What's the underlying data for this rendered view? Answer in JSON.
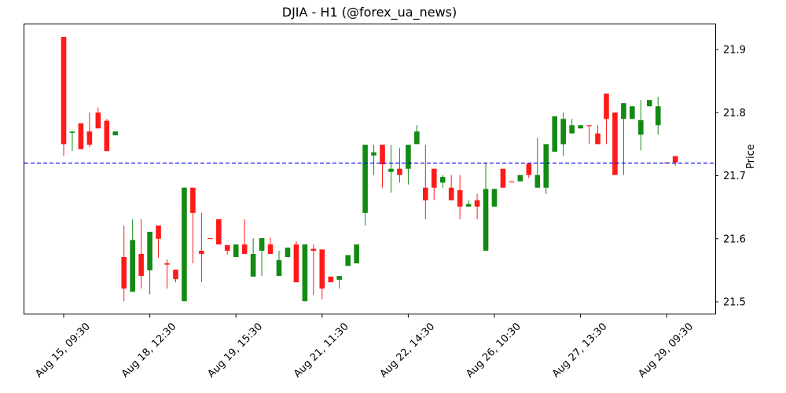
{
  "title": "DJIA - H1 (@forex_ua_news)",
  "ylabel": "Price",
  "colors": {
    "up": "#138a13",
    "down": "#ff1a1a",
    "reference_line": "#0000ff",
    "axis": "#000000"
  },
  "chart_data": {
    "type": "candlestick",
    "title": "DJIA - H1 (@forex_ua_news)",
    "xlabel": "",
    "ylabel": "Price",
    "ylim": [
      21.48,
      21.94
    ],
    "yticks": [
      21.5,
      21.6,
      21.7,
      21.8,
      21.9
    ],
    "xtick_labels": [
      "Aug 15, 09:30",
      "Aug 18, 12:30",
      "Aug 19, 15:30",
      "Aug 21, 11:30",
      "Aug 22, 14:30",
      "Aug 26, 10:30",
      "Aug 27, 13:30",
      "Aug 29, 09:30"
    ],
    "xtick_indices": [
      0,
      10,
      20,
      30,
      40,
      50,
      60,
      70
    ],
    "reference_line": {
      "y": 21.72,
      "style": "dashed",
      "color": "#0000ff"
    },
    "grid": false,
    "candles": [
      {
        "o": 21.92,
        "h": 21.92,
        "l": 21.731,
        "c": 21.75
      },
      {
        "o": 21.768,
        "h": 21.77,
        "l": 21.739,
        "c": 21.77
      },
      {
        "o": 21.783,
        "h": 21.783,
        "l": 21.742,
        "c": 21.742
      },
      {
        "o": 21.77,
        "h": 21.8,
        "l": 21.745,
        "c": 21.749
      },
      {
        "o": 21.8,
        "h": 21.808,
        "l": 21.775,
        "c": 21.775
      },
      {
        "o": 21.787,
        "h": 21.79,
        "l": 21.739,
        "c": 21.739
      },
      {
        "o": 21.764,
        "h": 21.77,
        "l": 21.764,
        "c": 21.77
      },
      {
        "o": 21.571,
        "h": 21.621,
        "l": 21.501,
        "c": 21.521
      },
      {
        "o": 21.516,
        "h": 21.631,
        "l": 21.516,
        "c": 21.598
      },
      {
        "o": 21.576,
        "h": 21.631,
        "l": 21.521,
        "c": 21.541
      },
      {
        "o": 21.55,
        "h": 21.611,
        "l": 21.512,
        "c": 21.611
      },
      {
        "o": 21.621,
        "h": 21.621,
        "l": 21.57,
        "c": 21.6
      },
      {
        "o": 21.561,
        "h": 21.567,
        "l": 21.521,
        "c": 21.559
      },
      {
        "o": 21.551,
        "h": 21.551,
        "l": 21.531,
        "c": 21.536
      },
      {
        "o": 21.501,
        "h": 21.681,
        "l": 21.501,
        "c": 21.681
      },
      {
        "o": 21.681,
        "h": 21.681,
        "l": 21.561,
        "c": 21.641
      },
      {
        "o": 21.581,
        "h": 21.641,
        "l": 21.531,
        "c": 21.576
      },
      {
        "o": 21.601,
        "h": 21.601,
        "l": 21.601,
        "c": 21.6
      },
      {
        "o": 21.631,
        "h": 21.631,
        "l": 21.591,
        "c": 21.591
      },
      {
        "o": 21.59,
        "h": 21.59,
        "l": 21.575,
        "c": 21.581
      },
      {
        "o": 21.571,
        "h": 21.591,
        "l": 21.571,
        "c": 21.591
      },
      {
        "o": 21.591,
        "h": 21.631,
        "l": 21.576,
        "c": 21.576
      },
      {
        "o": 21.54,
        "h": 21.601,
        "l": 21.54,
        "c": 21.576
      },
      {
        "o": 21.581,
        "h": 21.601,
        "l": 21.541,
        "c": 21.601
      },
      {
        "o": 21.591,
        "h": 21.602,
        "l": 21.576,
        "c": 21.576
      },
      {
        "o": 21.541,
        "h": 21.581,
        "l": 21.541,
        "c": 21.566
      },
      {
        "o": 21.571,
        "h": 21.586,
        "l": 21.571,
        "c": 21.586
      },
      {
        "o": 21.591,
        "h": 21.596,
        "l": 21.531,
        "c": 21.531
      },
      {
        "o": 21.501,
        "h": 21.591,
        "l": 21.501,
        "c": 21.591
      },
      {
        "o": 21.584,
        "h": 21.591,
        "l": 21.511,
        "c": 21.581
      },
      {
        "o": 21.583,
        "h": 21.583,
        "l": 21.504,
        "c": 21.521
      },
      {
        "o": 21.54,
        "h": 21.54,
        "l": 21.531,
        "c": 21.531
      },
      {
        "o": 21.535,
        "h": 21.541,
        "l": 21.521,
        "c": 21.541
      },
      {
        "o": 21.557,
        "h": 21.574,
        "l": 21.557,
        "c": 21.574
      },
      {
        "o": 21.561,
        "h": 21.591,
        "l": 21.561,
        "c": 21.591
      },
      {
        "o": 21.641,
        "h": 21.749,
        "l": 21.621,
        "c": 21.749
      },
      {
        "o": 21.732,
        "h": 21.749,
        "l": 21.701,
        "c": 21.737
      },
      {
        "o": 21.749,
        "h": 21.749,
        "l": 21.681,
        "c": 21.718
      },
      {
        "o": 21.706,
        "h": 21.749,
        "l": 21.673,
        "c": 21.711
      },
      {
        "o": 21.711,
        "h": 21.744,
        "l": 21.689,
        "c": 21.701
      },
      {
        "o": 21.711,
        "h": 21.749,
        "l": 21.686,
        "c": 21.749
      },
      {
        "o": 21.75,
        "h": 21.78,
        "l": 21.75,
        "c": 21.77
      },
      {
        "o": 21.681,
        "h": 21.749,
        "l": 21.631,
        "c": 21.661
      },
      {
        "o": 21.711,
        "h": 21.711,
        "l": 21.661,
        "c": 21.681
      },
      {
        "o": 21.689,
        "h": 21.701,
        "l": 21.681,
        "c": 21.698
      },
      {
        "o": 21.681,
        "h": 21.701,
        "l": 21.661,
        "c": 21.661
      },
      {
        "o": 21.677,
        "h": 21.701,
        "l": 21.631,
        "c": 21.651
      },
      {
        "o": 21.651,
        "h": 21.661,
        "l": 21.651,
        "c": 21.655
      },
      {
        "o": 21.661,
        "h": 21.671,
        "l": 21.631,
        "c": 21.651
      },
      {
        "o": 21.581,
        "h": 21.721,
        "l": 21.581,
        "c": 21.679
      },
      {
        "o": 21.651,
        "h": 21.679,
        "l": 21.651,
        "c": 21.679
      },
      {
        "o": 21.711,
        "h": 21.711,
        "l": 21.681,
        "c": 21.681
      },
      {
        "o": 21.691,
        "h": 21.691,
        "l": 21.691,
        "c": 21.69
      },
      {
        "o": 21.691,
        "h": 21.701,
        "l": 21.691,
        "c": 21.701
      },
      {
        "o": 21.719,
        "h": 21.719,
        "l": 21.696,
        "c": 21.701
      },
      {
        "o": 21.681,
        "h": 21.76,
        "l": 21.681,
        "c": 21.701
      },
      {
        "o": 21.681,
        "h": 21.75,
        "l": 21.671,
        "c": 21.75
      },
      {
        "o": 21.738,
        "h": 21.794,
        "l": 21.738,
        "c": 21.794
      },
      {
        "o": 21.75,
        "h": 21.8,
        "l": 21.731,
        "c": 21.79
      },
      {
        "o": 21.767,
        "h": 21.79,
        "l": 21.767,
        "c": 21.78
      },
      {
        "o": 21.775,
        "h": 21.78,
        "l": 21.775,
        "c": 21.78
      },
      {
        "o": 21.78,
        "h": 21.78,
        "l": 21.75,
        "c": 21.779
      },
      {
        "o": 21.767,
        "h": 21.78,
        "l": 21.75,
        "c": 21.75
      },
      {
        "o": 21.83,
        "h": 21.83,
        "l": 21.75,
        "c": 21.79
      },
      {
        "o": 21.8,
        "h": 21.8,
        "l": 21.701,
        "c": 21.701
      },
      {
        "o": 21.79,
        "h": 21.815,
        "l": 21.701,
        "c": 21.815
      },
      {
        "o": 21.79,
        "h": 21.81,
        "l": 21.79,
        "c": 21.81
      },
      {
        "o": 21.765,
        "h": 21.82,
        "l": 21.74,
        "c": 21.788
      },
      {
        "o": 21.81,
        "h": 21.82,
        "l": 21.81,
        "c": 21.82
      },
      {
        "o": 21.78,
        "h": 21.825,
        "l": 21.765,
        "c": 21.81
      },
      {
        "o": 21.721,
        "h": 21.721,
        "l": 21.72,
        "c": 21.72
      },
      {
        "o": 21.731,
        "h": 21.731,
        "l": 21.716,
        "c": 21.721
      }
    ]
  }
}
